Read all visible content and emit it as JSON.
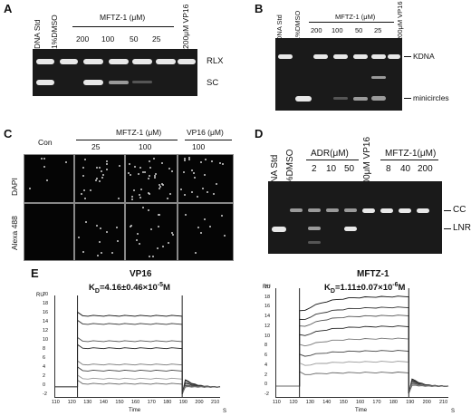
{
  "panels": {
    "A": {
      "letter": "A",
      "lanes": [
        "DNA Std",
        "1%DMSO"
      ],
      "group_label": "MFTZ-1 (μM)",
      "concs": [
        "200",
        "100",
        "50",
        "25"
      ],
      "vp16": "200μM VP16",
      "right_labels": [
        "RLX",
        "SC"
      ]
    },
    "B": {
      "letter": "B",
      "lanes": [
        "DNA Std",
        "1%DMSO"
      ],
      "group_label": "MFTZ-1 (μM)",
      "concs": [
        "200",
        "100",
        "50",
        "25"
      ],
      "vp16": "200μM VP16",
      "right_labels": [
        "KDNA",
        "minicircles"
      ]
    },
    "C": {
      "letter": "C",
      "con": "Con",
      "group_label": "MFTZ-1 (μM)",
      "concs": [
        "25",
        "100"
      ],
      "vp16_label": "VP16 (μM)",
      "vp16_conc": "100",
      "rows": [
        "DAPI",
        "Alexa 488"
      ]
    },
    "D": {
      "letter": "D",
      "lanes": [
        "DNA Std",
        "1%DMSO"
      ],
      "adr_label": "ADR(μM)",
      "adr_concs": [
        "2",
        "10",
        "50"
      ],
      "vp16": "200μM VP16",
      "mftz_label": "MFTZ-1(μM)",
      "mftz_concs": [
        "8",
        "40",
        "200"
      ],
      "right_labels": [
        "CC",
        "LNR"
      ]
    },
    "E": {
      "letter": "E",
      "left": {
        "title": "VP16",
        "kd": "K",
        "kd_sub": "D",
        "kd_value": "=4.16±0.46×10",
        "kd_exp": "-5",
        "kd_unit": "M",
        "yunit": "RU",
        "xunit": "S",
        "xlabel": "Time",
        "yticks": [
          "20",
          "18",
          "16",
          "14",
          "12",
          "10",
          "8",
          "6",
          "4",
          "2",
          "0",
          "-2"
        ],
        "xticks": [
          "110",
          "120",
          "130",
          "140",
          "150",
          "160",
          "170",
          "180",
          "190",
          "200",
          "210"
        ]
      },
      "right": {
        "title": "MFTZ-1",
        "kd": "K",
        "kd_sub": "D",
        "kd_value": "=1.11±0.07×10",
        "kd_exp": "-6",
        "kd_unit": "M",
        "yunit": "RU",
        "xunit": "S",
        "xlabel": "Time",
        "yticks": [
          "20",
          "18",
          "16",
          "14",
          "12",
          "10",
          "8",
          "6",
          "4",
          "2",
          "0",
          "-2"
        ],
        "xticks": [
          "110",
          "120",
          "130",
          "140",
          "150",
          "160",
          "170",
          "180",
          "190",
          "200",
          "210"
        ]
      }
    }
  }
}
